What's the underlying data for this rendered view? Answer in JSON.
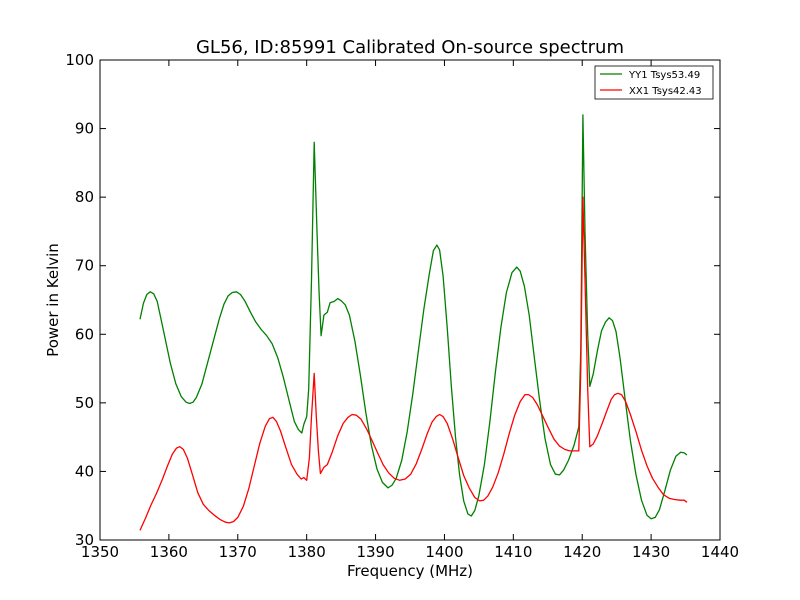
{
  "chart_data": {
    "type": "line",
    "title": "GL56, ID:85991 Calibrated On-source spectrum",
    "xlabel": "Frequency (MHz)",
    "ylabel": "Power in Kelvin",
    "xlim": [
      1350,
      1440
    ],
    "ylim": [
      30,
      100
    ],
    "xticks": [
      "1350",
      "1360",
      "1370",
      "1380",
      "1390",
      "1400",
      "1410",
      "1420",
      "1430",
      "1440"
    ],
    "yticks": [
      "30",
      "40",
      "50",
      "60",
      "70",
      "80",
      "90",
      "100"
    ],
    "grid": false,
    "legend_position": "top-right",
    "series": [
      {
        "name": "YY1 Tsys53.49",
        "color": "#008000",
        "points": [
          [
            1355.8,
            62.2
          ],
          [
            1356.3,
            64.5
          ],
          [
            1356.8,
            65.8
          ],
          [
            1357.3,
            66.2
          ],
          [
            1357.8,
            65.9
          ],
          [
            1358.3,
            64.8
          ],
          [
            1358.8,
            62.5
          ],
          [
            1359.5,
            59.2
          ],
          [
            1360.2,
            55.8
          ],
          [
            1361.0,
            52.8
          ],
          [
            1361.8,
            50.9
          ],
          [
            1362.5,
            50.1
          ],
          [
            1363.0,
            49.9
          ],
          [
            1363.5,
            50.1
          ],
          [
            1364.0,
            50.8
          ],
          [
            1364.8,
            52.8
          ],
          [
            1365.6,
            55.8
          ],
          [
            1366.5,
            59.2
          ],
          [
            1367.3,
            62.2
          ],
          [
            1368.0,
            64.4
          ],
          [
            1368.6,
            65.6
          ],
          [
            1369.2,
            66.1
          ],
          [
            1369.8,
            66.2
          ],
          [
            1370.4,
            65.8
          ],
          [
            1371.0,
            64.9
          ],
          [
            1371.8,
            63.3
          ],
          [
            1372.6,
            61.8
          ],
          [
            1373.4,
            60.7
          ],
          [
            1374.2,
            59.8
          ],
          [
            1375.0,
            58.6
          ],
          [
            1375.8,
            56.6
          ],
          [
            1376.6,
            53.8
          ],
          [
            1377.4,
            50.5
          ],
          [
            1378.2,
            47.3
          ],
          [
            1378.8,
            46.1
          ],
          [
            1379.3,
            45.6
          ],
          [
            1379.6,
            46.9
          ],
          [
            1380.0,
            48.0
          ],
          [
            1380.3,
            52.0
          ],
          [
            1380.7,
            68.0
          ],
          [
            1381.1,
            88.0
          ],
          [
            1381.5,
            75.0
          ],
          [
            1381.8,
            66.0
          ],
          [
            1382.1,
            59.8
          ],
          [
            1382.5,
            62.8
          ],
          [
            1383.0,
            63.2
          ],
          [
            1383.4,
            64.6
          ],
          [
            1384.0,
            64.8
          ],
          [
            1384.5,
            65.2
          ],
          [
            1385.0,
            64.9
          ],
          [
            1385.6,
            64.3
          ],
          [
            1386.2,
            62.8
          ],
          [
            1387.0,
            59.0
          ],
          [
            1387.8,
            54.0
          ],
          [
            1388.6,
            48.5
          ],
          [
            1389.4,
            43.8
          ],
          [
            1390.2,
            40.4
          ],
          [
            1391.0,
            38.4
          ],
          [
            1391.8,
            37.6
          ],
          [
            1392.4,
            38.0
          ],
          [
            1393.0,
            39.0
          ],
          [
            1393.8,
            41.6
          ],
          [
            1394.6,
            45.8
          ],
          [
            1395.4,
            51.3
          ],
          [
            1396.2,
            57.5
          ],
          [
            1397.0,
            63.6
          ],
          [
            1397.8,
            68.8
          ],
          [
            1398.4,
            72.2
          ],
          [
            1398.9,
            73.0
          ],
          [
            1399.3,
            72.3
          ],
          [
            1399.8,
            68.5
          ],
          [
            1400.4,
            61.0
          ],
          [
            1401.0,
            52.5
          ],
          [
            1401.6,
            45.0
          ],
          [
            1402.2,
            39.5
          ],
          [
            1402.8,
            35.7
          ],
          [
            1403.4,
            33.8
          ],
          [
            1403.9,
            33.5
          ],
          [
            1404.4,
            34.3
          ],
          [
            1405.0,
            36.5
          ],
          [
            1405.8,
            41.0
          ],
          [
            1406.6,
            47.3
          ],
          [
            1407.4,
            54.5
          ],
          [
            1408.2,
            61.0
          ],
          [
            1409.0,
            66.1
          ],
          [
            1409.8,
            69.0
          ],
          [
            1410.5,
            69.8
          ],
          [
            1411.0,
            69.2
          ],
          [
            1411.6,
            67.0
          ],
          [
            1412.3,
            62.8
          ],
          [
            1413.0,
            57.0
          ],
          [
            1413.8,
            50.5
          ],
          [
            1414.6,
            44.8
          ],
          [
            1415.4,
            41.0
          ],
          [
            1416.1,
            39.6
          ],
          [
            1416.7,
            39.5
          ],
          [
            1417.3,
            40.2
          ],
          [
            1418.0,
            41.6
          ],
          [
            1418.8,
            43.8
          ],
          [
            1419.5,
            46.5
          ],
          [
            1419.8,
            58.0
          ],
          [
            1420.1,
            92.0
          ],
          [
            1420.4,
            75.0
          ],
          [
            1420.8,
            60.0
          ],
          [
            1421.1,
            52.4
          ],
          [
            1421.6,
            54.2
          ],
          [
            1422.2,
            57.6
          ],
          [
            1422.8,
            60.5
          ],
          [
            1423.4,
            61.8
          ],
          [
            1423.9,
            62.4
          ],
          [
            1424.4,
            62.0
          ],
          [
            1424.9,
            60.4
          ],
          [
            1425.5,
            56.5
          ],
          [
            1426.2,
            50.8
          ],
          [
            1427.0,
            44.5
          ],
          [
            1427.8,
            39.5
          ],
          [
            1428.6,
            35.8
          ],
          [
            1429.4,
            33.6
          ],
          [
            1430.0,
            33.1
          ],
          [
            1430.6,
            33.3
          ],
          [
            1431.2,
            34.4
          ],
          [
            1432.0,
            37.2
          ],
          [
            1432.8,
            40.2
          ],
          [
            1433.6,
            42.2
          ],
          [
            1434.3,
            42.8
          ],
          [
            1434.8,
            42.7
          ],
          [
            1435.2,
            42.4
          ]
        ]
      },
      {
        "name": "XX1 Tsys42.43",
        "color": "#ff0000",
        "points": [
          [
            1355.8,
            31.4
          ],
          [
            1356.6,
            33.2
          ],
          [
            1357.4,
            35.1
          ],
          [
            1358.2,
            36.8
          ],
          [
            1359.0,
            38.7
          ],
          [
            1359.8,
            40.8
          ],
          [
            1360.5,
            42.5
          ],
          [
            1361.1,
            43.4
          ],
          [
            1361.6,
            43.6
          ],
          [
            1362.1,
            43.2
          ],
          [
            1362.7,
            41.9
          ],
          [
            1363.4,
            39.6
          ],
          [
            1364.2,
            36.9
          ],
          [
            1365.0,
            35.2
          ],
          [
            1365.8,
            34.3
          ],
          [
            1366.6,
            33.6
          ],
          [
            1367.4,
            33.0
          ],
          [
            1368.2,
            32.6
          ],
          [
            1368.8,
            32.5
          ],
          [
            1369.4,
            32.7
          ],
          [
            1370.0,
            33.3
          ],
          [
            1370.8,
            34.9
          ],
          [
            1371.6,
            37.5
          ],
          [
            1372.4,
            40.8
          ],
          [
            1373.2,
            44.1
          ],
          [
            1374.0,
            46.6
          ],
          [
            1374.6,
            47.7
          ],
          [
            1375.1,
            47.9
          ],
          [
            1375.6,
            47.3
          ],
          [
            1376.2,
            45.9
          ],
          [
            1377.0,
            43.4
          ],
          [
            1377.8,
            41.0
          ],
          [
            1378.6,
            39.6
          ],
          [
            1379.2,
            38.9
          ],
          [
            1379.6,
            39.1
          ],
          [
            1380.0,
            38.7
          ],
          [
            1380.4,
            42.0
          ],
          [
            1380.7,
            48.0
          ],
          [
            1381.1,
            54.3
          ],
          [
            1381.4,
            48.0
          ],
          [
            1381.7,
            43.0
          ],
          [
            1382.0,
            39.7
          ],
          [
            1382.5,
            40.6
          ],
          [
            1383.0,
            41.0
          ],
          [
            1383.7,
            42.8
          ],
          [
            1384.5,
            45.2
          ],
          [
            1385.3,
            47.0
          ],
          [
            1386.0,
            47.9
          ],
          [
            1386.6,
            48.3
          ],
          [
            1387.2,
            48.2
          ],
          [
            1387.9,
            47.6
          ],
          [
            1388.7,
            46.2
          ],
          [
            1389.5,
            44.5
          ],
          [
            1390.3,
            42.7
          ],
          [
            1391.1,
            41.0
          ],
          [
            1391.9,
            39.8
          ],
          [
            1392.7,
            39.0
          ],
          [
            1393.5,
            38.7
          ],
          [
            1394.3,
            38.9
          ],
          [
            1395.1,
            39.6
          ],
          [
            1395.9,
            41.1
          ],
          [
            1396.7,
            43.2
          ],
          [
            1397.5,
            45.5
          ],
          [
            1398.2,
            47.2
          ],
          [
            1398.8,
            48.0
          ],
          [
            1399.3,
            48.3
          ],
          [
            1399.8,
            48.0
          ],
          [
            1400.4,
            47.0
          ],
          [
            1401.2,
            44.7
          ],
          [
            1402.0,
            42.0
          ],
          [
            1402.8,
            39.4
          ],
          [
            1403.6,
            37.6
          ],
          [
            1404.4,
            36.2
          ],
          [
            1405.1,
            35.7
          ],
          [
            1405.7,
            35.8
          ],
          [
            1406.3,
            36.4
          ],
          [
            1407.0,
            37.7
          ],
          [
            1407.8,
            39.8
          ],
          [
            1408.6,
            42.5
          ],
          [
            1409.4,
            45.5
          ],
          [
            1410.2,
            48.2
          ],
          [
            1411.0,
            50.2
          ],
          [
            1411.7,
            51.2
          ],
          [
            1412.2,
            51.2
          ],
          [
            1412.8,
            50.8
          ],
          [
            1413.5,
            49.7
          ],
          [
            1414.3,
            48.0
          ],
          [
            1415.1,
            46.3
          ],
          [
            1415.9,
            44.7
          ],
          [
            1416.7,
            43.7
          ],
          [
            1417.5,
            43.2
          ],
          [
            1418.2,
            43.0
          ],
          [
            1418.9,
            43.0
          ],
          [
            1419.5,
            43.0
          ],
          [
            1419.8,
            55.0
          ],
          [
            1420.1,
            80.0
          ],
          [
            1420.4,
            68.0
          ],
          [
            1420.8,
            52.0
          ],
          [
            1421.1,
            43.6
          ],
          [
            1421.6,
            44.0
          ],
          [
            1422.2,
            45.2
          ],
          [
            1422.9,
            47.0
          ],
          [
            1423.6,
            48.9
          ],
          [
            1424.2,
            50.5
          ],
          [
            1424.7,
            51.2
          ],
          [
            1425.2,
            51.4
          ],
          [
            1425.7,
            51.2
          ],
          [
            1426.3,
            50.2
          ],
          [
            1427.0,
            48.3
          ],
          [
            1427.8,
            45.8
          ],
          [
            1428.6,
            43.1
          ],
          [
            1429.4,
            40.8
          ],
          [
            1430.2,
            39.0
          ],
          [
            1431.0,
            37.7
          ],
          [
            1431.8,
            36.6
          ],
          [
            1432.6,
            36.1
          ],
          [
            1433.4,
            35.9
          ],
          [
            1434.2,
            35.8
          ],
          [
            1434.8,
            35.8
          ],
          [
            1435.2,
            35.5
          ]
        ]
      }
    ]
  }
}
